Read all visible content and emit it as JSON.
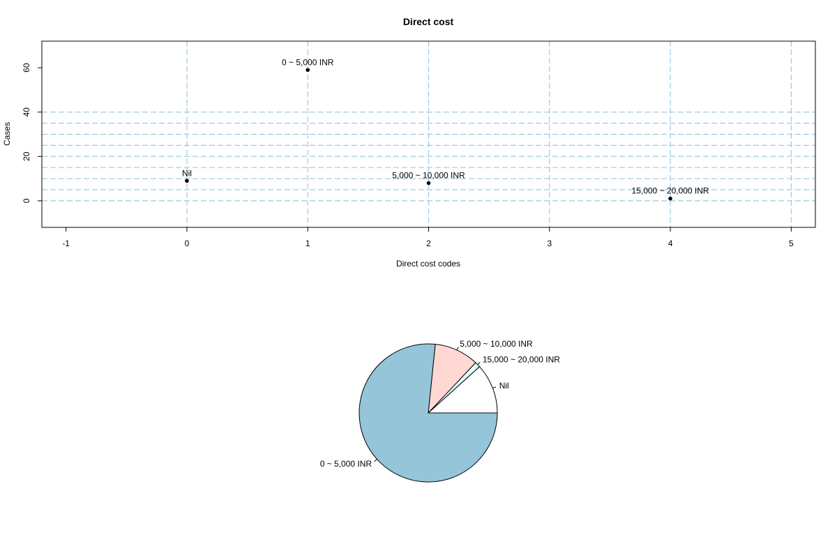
{
  "chart_data": [
    {
      "type": "scatter",
      "title": "Direct cost",
      "xlabel": "Direct cost codes",
      "ylabel": "Cases",
      "xlim": [
        -1.2,
        5.2
      ],
      "ylim": [
        -12,
        72
      ],
      "x_ticks": [
        -1,
        0,
        1,
        2,
        3,
        4,
        5
      ],
      "y_ticks": [
        0,
        20,
        40,
        60
      ],
      "grid": true,
      "grid_color": "#9ecae1",
      "grid_x": [
        0,
        1,
        2,
        3,
        4,
        5
      ],
      "grid_y": [
        0,
        5,
        10,
        15,
        20,
        25,
        30,
        35,
        40
      ],
      "points": [
        {
          "x": 0,
          "y": 9,
          "label": "Nil"
        },
        {
          "x": 1,
          "y": 59,
          "label": "0 ~ 5,000 INR"
        },
        {
          "x": 2,
          "y": 8,
          "label": "5,000 ~ 10,000 INR"
        },
        {
          "x": 4,
          "y": 1,
          "label": "15,000 ~ 20,000 INR"
        }
      ]
    },
    {
      "type": "pie",
      "slices": [
        {
          "label": "Nil",
          "value": 9,
          "color": "#ffffff"
        },
        {
          "label": "15,000 ~ 20,000 INR",
          "value": 1,
          "color": "#e0ffff"
        },
        {
          "label": "5,000 ~ 10,000 INR",
          "value": 8,
          "color": "#ffd8d3"
        },
        {
          "label": "0 ~ 5,000 INR",
          "value": 59,
          "color": "#95c5d9"
        }
      ]
    }
  ]
}
